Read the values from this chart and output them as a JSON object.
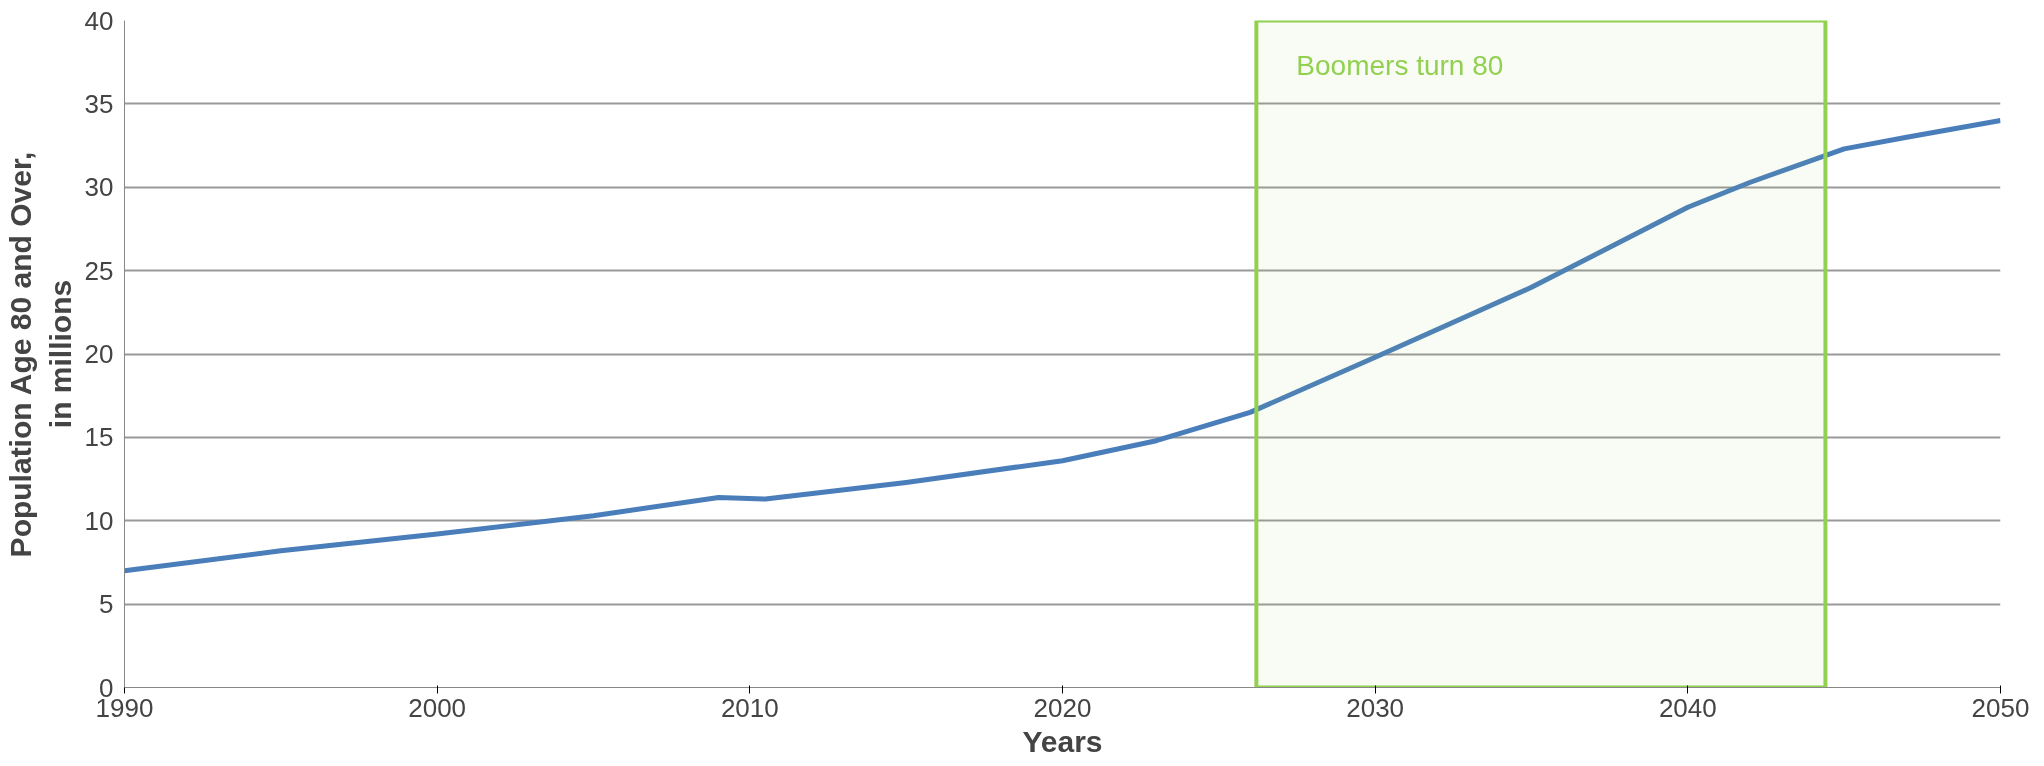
{
  "chart_data": {
    "type": "line",
    "xlabel": "Years",
    "ylabel": "Population Age 80 and Over,\nin millions",
    "x": [
      1990,
      1995,
      2000,
      2005,
      2009,
      2010.5,
      2015,
      2020,
      2023,
      2026,
      2030,
      2035,
      2040,
      2042,
      2045,
      2047,
      2050
    ],
    "series": [
      {
        "color": "#4a7ebb",
        "values": [
          7.0,
          8.2,
          9.2,
          10.3,
          11.4,
          11.3,
          12.3,
          13.6,
          14.8,
          16.5,
          19.8,
          24.0,
          28.8,
          30.3,
          32.3,
          33.0,
          34.0
        ]
      }
    ],
    "xlim": [
      1990,
      2050
    ],
    "xticks": [
      1990,
      2000,
      2010,
      2020,
      2030,
      2040,
      2050
    ],
    "ylim": [
      0,
      40
    ],
    "yticks": [
      0,
      5,
      10,
      15,
      20,
      25,
      30,
      35,
      40
    ],
    "grid": "y",
    "marker": "none",
    "line_style": "solid",
    "bands": [
      {
        "axis": "x",
        "from": 2026.2,
        "to": 2044.4,
        "label": "Boomers turn 80",
        "color": "#92d050"
      }
    ]
  }
}
